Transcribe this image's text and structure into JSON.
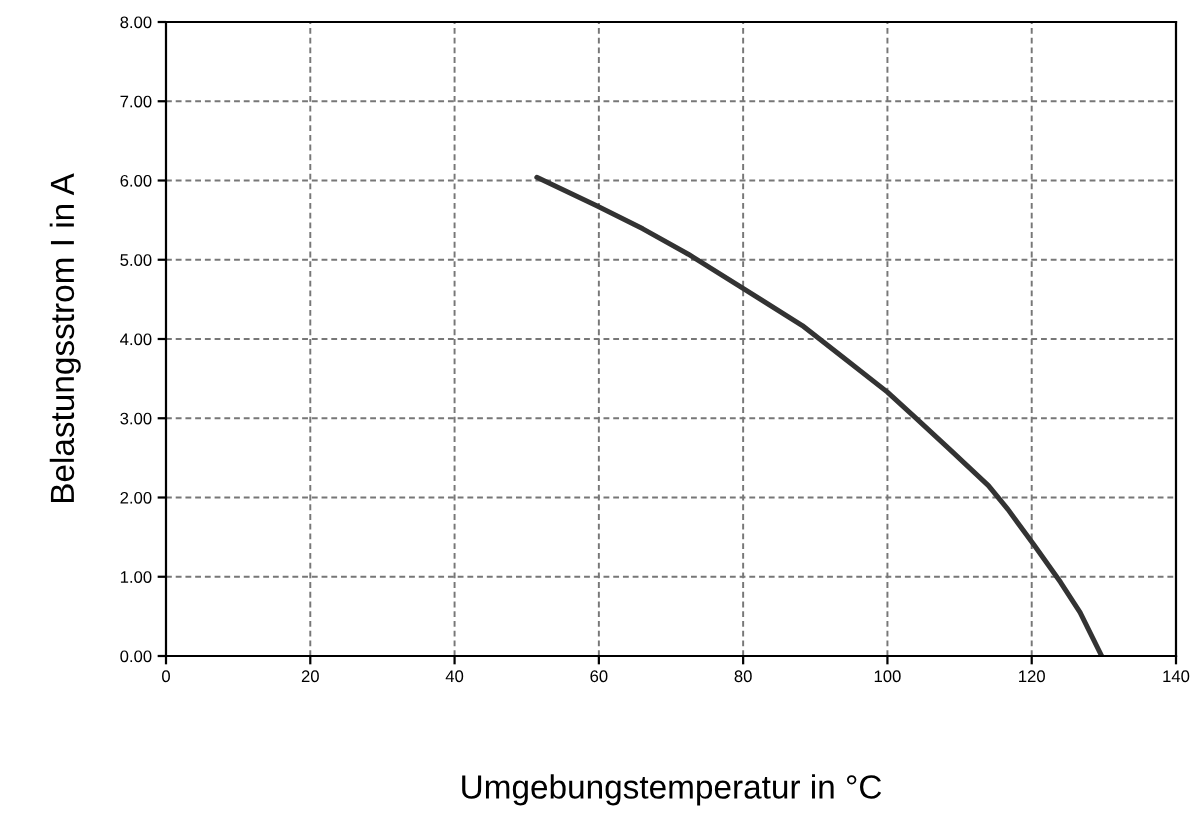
{
  "chart_data": {
    "type": "line",
    "xlabel": "Umgebungstemperatur in °C",
    "ylabel": "Belastungsstrom I in A",
    "series": [
      {
        "color": "#333333",
        "x": [
          51.4,
          59.7,
          66.1,
          72.4,
          79.6,
          88.2,
          94.1,
          100.0,
          104.1,
          108.6,
          114.0,
          116.7,
          120.4,
          124.0,
          126.7,
          129.7
        ],
        "values": [
          6.04,
          5.68,
          5.39,
          5.07,
          4.66,
          4.17,
          3.75,
          3.33,
          2.99,
          2.61,
          2.15,
          1.85,
          1.39,
          0.93,
          0.55,
          0.0
        ]
      }
    ],
    "xlim": [
      0,
      140
    ],
    "xticks": [
      0,
      20,
      40,
      60,
      80,
      100,
      120,
      140
    ],
    "ylim": [
      0,
      8
    ],
    "yticks": [
      {
        "value": 0,
        "label": "0.00"
      },
      {
        "value": 1,
        "label": "1.00"
      },
      {
        "value": 2,
        "label": "2.00"
      },
      {
        "value": 3,
        "label": "3.00"
      },
      {
        "value": 4,
        "label": "4.00"
      },
      {
        "value": 5,
        "label": "5.00"
      },
      {
        "value": 6,
        "label": "6.00"
      },
      {
        "value": 7,
        "label": "7.00"
      },
      {
        "value": 8,
        "label": "8.00"
      }
    ],
    "grid": true,
    "line_style": "solid",
    "marker": "none"
  }
}
